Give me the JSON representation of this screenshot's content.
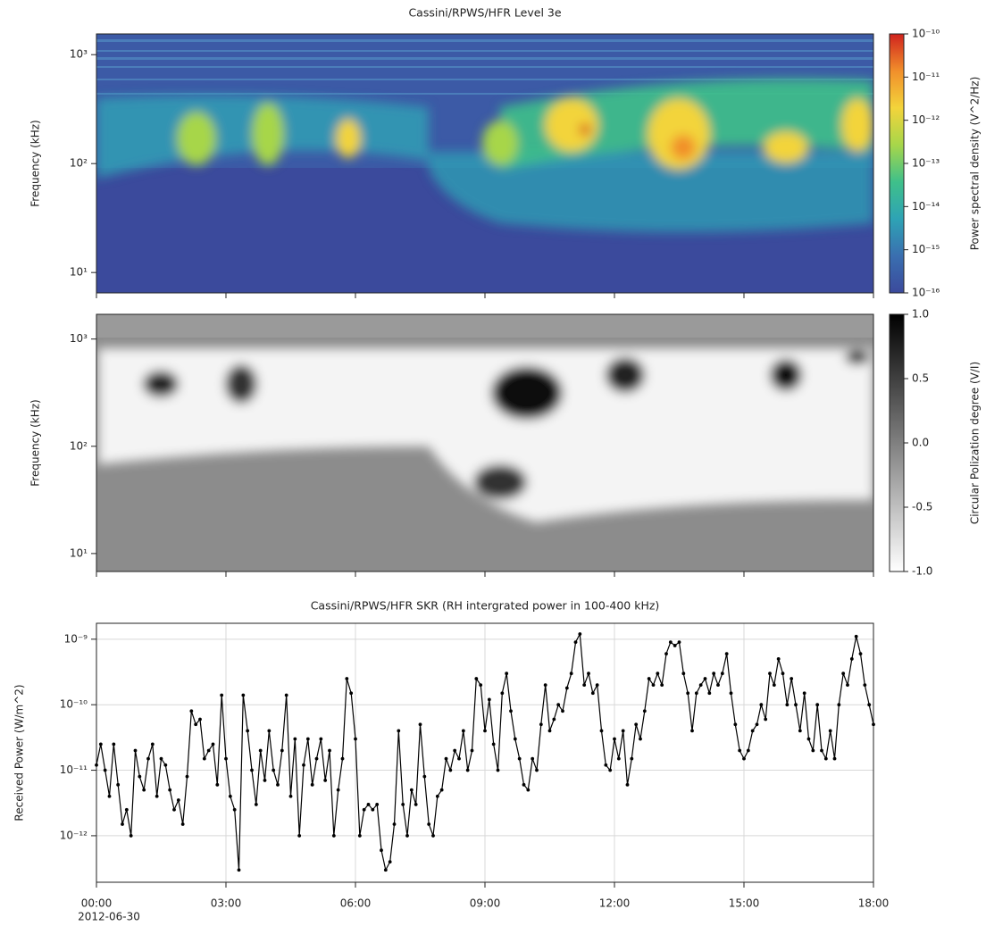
{
  "chart_data": [
    {
      "type": "spectrogram",
      "title": "Cassini/RPWS/HFR Level 3e",
      "ylabel": "Frequency (kHz)",
      "yscale": "log",
      "ylim": [
        6.5,
        1550
      ],
      "yticks": [
        {
          "value": 10,
          "label": "10¹"
        },
        {
          "value": 100,
          "label": "10²"
        },
        {
          "value": 1000,
          "label": "10³"
        }
      ],
      "xlim": [
        0,
        18
      ],
      "xticks": [
        0,
        3,
        6,
        9,
        12,
        15,
        18
      ],
      "grid": false,
      "colorbar": {
        "label": "Power spectral density (V^2/Hz)",
        "scale": "log",
        "clim": [
          1e-16,
          1e-10
        ],
        "ticks": [
          {
            "value": 1e-10,
            "label": "10⁻¹⁰"
          },
          {
            "value": 1e-11,
            "label": "10⁻¹¹"
          },
          {
            "value": 1e-12,
            "label": "10⁻¹²"
          },
          {
            "value": 1e-13,
            "label": "10⁻¹³"
          },
          {
            "value": 1e-14,
            "label": "10⁻¹⁴"
          },
          {
            "value": 1e-15,
            "label": "10⁻¹⁵"
          },
          {
            "value": 1e-16,
            "label": "10⁻¹⁶"
          }
        ],
        "colors": [
          "#3b4a9c",
          "#3a6fb0",
          "#2ea3b5",
          "#3fc08a",
          "#a7d64a",
          "#f3d43b",
          "#f18f2b",
          "#d0231e"
        ]
      }
    },
    {
      "type": "spectrogram",
      "ylabel": "Frequency (kHz)",
      "yscale": "log",
      "ylim": [
        6.8,
        1700
      ],
      "yticks": [
        {
          "value": 10,
          "label": "10¹"
        },
        {
          "value": 100,
          "label": "10²"
        },
        {
          "value": 1000,
          "label": "10³"
        }
      ],
      "xlim": [
        0,
        18
      ],
      "xticks": [
        0,
        3,
        6,
        9,
        12,
        15,
        18
      ],
      "grid": false,
      "colorbar": {
        "label": "Circular Polization degree (V/I)",
        "scale": "linear",
        "clim": [
          -1,
          1
        ],
        "ticks": [
          {
            "value": 1,
            "label": "1.0"
          },
          {
            "value": 0.5,
            "label": "0.5"
          },
          {
            "value": 0,
            "label": "0.0"
          },
          {
            "value": -0.5,
            "label": "-0.5"
          },
          {
            "value": -1,
            "label": "-1.0"
          }
        ],
        "colors": [
          "#ffffff",
          "#000000"
        ]
      }
    },
    {
      "type": "line",
      "title": "Cassini/RPWS/HFR SKR (RH intergrated power in 100-400 kHz)",
      "ylabel": "Received Power (W/m^2)",
      "yscale": "log",
      "ylim": [
        1.95e-13,
        1.75e-09
      ],
      "yticks": [
        {
          "value": 1e-12,
          "label": "10⁻¹²"
        },
        {
          "value": 1e-11,
          "label": "10⁻¹¹"
        },
        {
          "value": 1e-10,
          "label": "10⁻¹⁰"
        },
        {
          "value": 1e-09,
          "label": "10⁻⁹"
        }
      ],
      "xlim": [
        0,
        18
      ],
      "xticks": [
        {
          "value": 0,
          "label": "00:00"
        },
        {
          "value": 3,
          "label": "03:00"
        },
        {
          "value": 6,
          "label": "06:00"
        },
        {
          "value": 9,
          "label": "09:00"
        },
        {
          "value": 12,
          "label": "12:00"
        },
        {
          "value": 15,
          "label": "15:00"
        },
        {
          "value": 18,
          "label": "18:00"
        }
      ],
      "date": "2012-06-30",
      "grid": true,
      "x": [
        0,
        0.1,
        0.2,
        0.3,
        0.4,
        0.5,
        0.6,
        0.7,
        0.8,
        0.9,
        1,
        1.1,
        1.2,
        1.3,
        1.4,
        1.5,
        1.6,
        1.7,
        1.8,
        1.9,
        2,
        2.1,
        2.2,
        2.3,
        2.4,
        2.5,
        2.6,
        2.7,
        2.8,
        2.9,
        3,
        3.1,
        3.2,
        3.3,
        3.4,
        3.5,
        3.6,
        3.7,
        3.8,
        3.9,
        4,
        4.1,
        4.2,
        4.3,
        4.4,
        4.5,
        4.6,
        4.7,
        4.8,
        4.9,
        5,
        5.1,
        5.2,
        5.3,
        5.4,
        5.5,
        5.6,
        5.7,
        5.8,
        5.9,
        6,
        6.1,
        6.2,
        6.3,
        6.4,
        6.5,
        6.6,
        6.7,
        6.8,
        6.9,
        7,
        7.1,
        7.2,
        7.3,
        7.4,
        7.5,
        7.6,
        7.7,
        7.8,
        7.9,
        8,
        8.1,
        8.2,
        8.3,
        8.4,
        8.5,
        8.6,
        8.7,
        8.8,
        8.9,
        9,
        9.1,
        9.2,
        9.3,
        9.4,
        9.5,
        9.6,
        9.7,
        9.8,
        9.9,
        10,
        10.1,
        10.2,
        10.3,
        10.4,
        10.5,
        10.6,
        10.7,
        10.8,
        10.9,
        11,
        11.1,
        11.2,
        11.3,
        11.4,
        11.5,
        11.6,
        11.7,
        11.8,
        11.9,
        12,
        12.1,
        12.2,
        12.3,
        12.4,
        12.5,
        12.6,
        12.7,
        12.8,
        12.9,
        13,
        13.1,
        13.2,
        13.3,
        13.4,
        13.5,
        13.6,
        13.7,
        13.8,
        13.9,
        14,
        14.1,
        14.2,
        14.3,
        14.4,
        14.5,
        14.6,
        14.7,
        14.8,
        14.9,
        15,
        15.1,
        15.2,
        15.3,
        15.4,
        15.5,
        15.6,
        15.7,
        15.8,
        15.9,
        16,
        16.1,
        16.2,
        16.3,
        16.4,
        16.5,
        16.6,
        16.7,
        16.8,
        16.9,
        17,
        17.1,
        17.2,
        17.3,
        17.4,
        17.5,
        17.6,
        17.7,
        17.8,
        17.9,
        18
      ],
      "series": [
        {
          "color": "#000000",
          "values": [
            1.2e-11,
            2.5e-11,
            1e-11,
            4e-12,
            2.5e-11,
            6e-12,
            1.5e-12,
            2.5e-12,
            1e-12,
            2e-11,
            8e-12,
            5e-12,
            1.5e-11,
            2.5e-11,
            4e-12,
            1.5e-11,
            1.2e-11,
            5e-12,
            2.5e-12,
            3.5e-12,
            1.5e-12,
            8e-12,
            8e-11,
            5e-11,
            6e-11,
            1.5e-11,
            2e-11,
            2.5e-11,
            6e-12,
            1.4e-10,
            1.5e-11,
            4e-12,
            2.5e-12,
            3e-13,
            1.4e-10,
            4e-11,
            1e-11,
            3e-12,
            2e-11,
            7e-12,
            4e-11,
            1e-11,
            6e-12,
            2e-11,
            1.4e-10,
            4e-12,
            3e-11,
            1e-12,
            1.2e-11,
            3e-11,
            6e-12,
            1.5e-11,
            3e-11,
            7e-12,
            2e-11,
            1e-12,
            5e-12,
            1.5e-11,
            2.5e-10,
            1.5e-10,
            3e-11,
            1e-12,
            2.5e-12,
            3e-12,
            2.5e-12,
            3e-12,
            6e-13,
            3e-13,
            4e-13,
            1.5e-12,
            4e-11,
            3e-12,
            1e-12,
            5e-12,
            3e-12,
            5e-11,
            8e-12,
            1.5e-12,
            1e-12,
            4e-12,
            5e-12,
            1.5e-11,
            1e-11,
            2e-11,
            1.5e-11,
            4e-11,
            1e-11,
            2e-11,
            2.5e-10,
            2e-10,
            4e-11,
            1.2e-10,
            2.5e-11,
            1e-11,
            1.5e-10,
            3e-10,
            8e-11,
            3e-11,
            1.5e-11,
            6e-12,
            5e-12,
            1.5e-11,
            1e-11,
            5e-11,
            2e-10,
            4e-11,
            6e-11,
            1e-10,
            8e-11,
            1.8e-10,
            3e-10,
            9e-10,
            1.2e-09,
            2e-10,
            3e-10,
            1.5e-10,
            2e-10,
            4e-11,
            1.2e-11,
            1e-11,
            3e-11,
            1.5e-11,
            4e-11,
            6e-12,
            1.5e-11,
            5e-11,
            3e-11,
            8e-11,
            2.5e-10,
            2e-10,
            3e-10,
            2e-10,
            6e-10,
            9e-10,
            8e-10,
            9e-10,
            3e-10,
            1.5e-10,
            4e-11,
            1.5e-10,
            2e-10,
            2.5e-10,
            1.5e-10,
            3e-10,
            2e-10,
            3e-10,
            6e-10,
            1.5e-10,
            5e-11,
            2e-11,
            1.5e-11,
            2e-11,
            4e-11,
            5e-11,
            1e-10,
            6e-11,
            3e-10,
            2e-10,
            5e-10,
            3e-10,
            1e-10,
            2.5e-10,
            1e-10,
            4e-11,
            1.5e-10,
            3e-11,
            2e-11,
            1e-10,
            2e-11,
            1.5e-11,
            4e-11,
            1.5e-11,
            1e-10,
            3e-10,
            2e-10,
            5e-10,
            1.1e-09,
            6e-10,
            2e-10,
            1e-10,
            5e-11
          ]
        }
      ]
    }
  ]
}
